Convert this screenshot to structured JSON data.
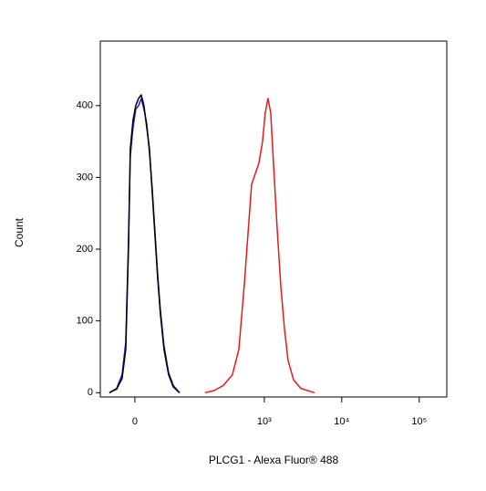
{
  "chart_data": {
    "type": "histogram-overlay",
    "xlabel": "PLCG1 - Alexa Fluor® 488",
    "ylabel": "Count",
    "xscale": "biexponential",
    "xlim": [
      -52,
      227000
    ],
    "xticks": [
      0,
      {
        "value": 1000,
        "label": "10³"
      },
      {
        "value": 10000,
        "label": "10⁴"
      },
      {
        "value": 100000,
        "label": "10⁵"
      }
    ],
    "ylim": [
      -6,
      490
    ],
    "yticks": [
      0,
      100,
      200,
      300,
      400
    ],
    "series": [
      {
        "color": "#1a1adf",
        "x": [
          -35.6,
          -24.3,
          -16.6,
          -11.7,
          -8.2,
          -5.8,
          -2.3,
          1.2,
          4.6,
          8.2,
          11.7,
          15.3,
          19.1,
          23.0,
          27.0,
          31.2,
          35.6,
          41.8,
          50.4,
          59.9,
          75.0
        ],
        "values": [
          0,
          6,
          25,
          70,
          210,
          330,
          370,
          395,
          400,
          410,
          395,
          375,
          335,
          285,
          225,
          165,
          115,
          65,
          28,
          10,
          0
        ]
      },
      {
        "color": "#000000",
        "x": [
          -35.6,
          -24.3,
          -16.6,
          -11.7,
          -8.2,
          -5.8,
          -2.3,
          1.2,
          4.6,
          8.2,
          11.7,
          15.3,
          19.1,
          23.0,
          27.0,
          31.2,
          35.6,
          41.8,
          50.4,
          59.9,
          75.0
        ],
        "values": [
          0,
          5,
          20,
          60,
          200,
          340,
          380,
          400,
          410,
          415,
          400,
          370,
          340,
          280,
          220,
          160,
          110,
          60,
          25,
          8,
          0
        ]
      },
      {
        "color": "#e8191c",
        "x": [
          169,
          224,
          294,
          387,
          468,
          551,
          614,
          685,
          763,
          851,
          948,
          1028,
          1116,
          1210,
          1313,
          1464,
          1631,
          1816,
          2025,
          2383,
          2960,
          4447
        ],
        "values": [
          0,
          3,
          10,
          25,
          60,
          150,
          220,
          290,
          305,
          320,
          350,
          390,
          410,
          390,
          320,
          230,
          150,
          90,
          45,
          18,
          6,
          0
        ]
      }
    ]
  }
}
